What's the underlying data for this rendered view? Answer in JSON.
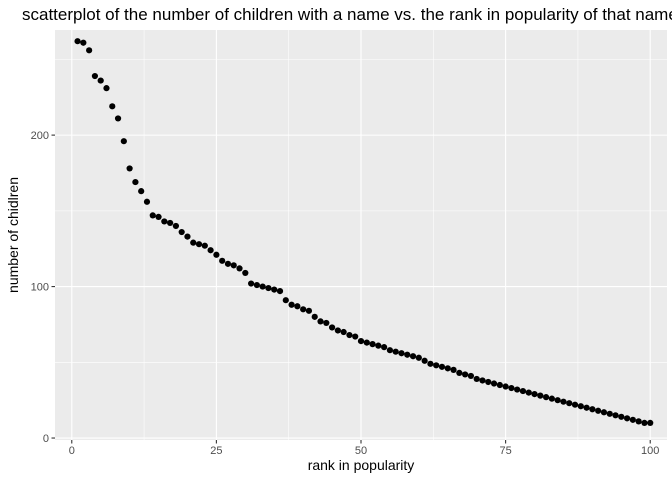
{
  "chart_data": {
    "type": "scatter",
    "title": "scatterplot of the number of children with a name vs. the rank in popularity of that name",
    "xlabel": "rank in popularity",
    "ylabel": "number of chidlren",
    "xlim": [
      -2.9,
      102.9
    ],
    "ylim": [
      -1.3,
      269.4
    ],
    "xticks": [
      0,
      25,
      50,
      75,
      100
    ],
    "yticks": [
      0,
      100,
      200
    ],
    "grid": true,
    "legend": "none",
    "colors": {
      "panel": "#ebebeb",
      "grid": "#ffffff",
      "point": "#000000"
    },
    "x": [
      1,
      2,
      3,
      4,
      5,
      6,
      7,
      8,
      9,
      10,
      11,
      12,
      13,
      14,
      15,
      16,
      17,
      18,
      19,
      20,
      21,
      22,
      23,
      24,
      25,
      26,
      27,
      28,
      29,
      30,
      31,
      32,
      33,
      34,
      35,
      36,
      37,
      38,
      39,
      40,
      41,
      42,
      43,
      44,
      45,
      46,
      47,
      48,
      49,
      50,
      51,
      52,
      53,
      54,
      55,
      56,
      57,
      58,
      59,
      60,
      61,
      62,
      63,
      64,
      65,
      66,
      67,
      68,
      69,
      70,
      71,
      72,
      73,
      74,
      75,
      76,
      77,
      78,
      79,
      80,
      81,
      82,
      83,
      84,
      85,
      86,
      87,
      88,
      89,
      90,
      91,
      92,
      93,
      94,
      95,
      96,
      97,
      98,
      99,
      100
    ],
    "y": [
      262,
      261,
      256,
      239,
      236,
      231,
      219,
      211,
      196,
      178,
      169,
      163,
      156,
      147,
      146,
      143,
      142,
      140,
      136,
      133,
      129,
      128,
      127,
      124,
      121,
      117,
      115,
      114,
      112,
      109,
      102,
      101,
      100,
      99,
      98,
      97,
      91,
      88,
      87,
      85,
      84,
      80,
      77,
      76,
      73,
      71,
      70,
      68,
      67,
      64,
      63,
      62,
      61,
      60,
      58,
      57,
      56,
      55,
      54,
      53,
      51,
      49,
      48,
      47,
      46,
      45,
      43,
      42,
      41,
      39,
      38,
      37,
      36,
      35,
      34,
      33,
      32,
      31,
      30,
      29,
      28,
      27,
      26,
      25,
      24,
      23,
      22,
      21,
      20,
      19,
      18,
      17,
      16,
      15,
      14,
      13,
      12,
      11,
      10,
      10
    ]
  }
}
